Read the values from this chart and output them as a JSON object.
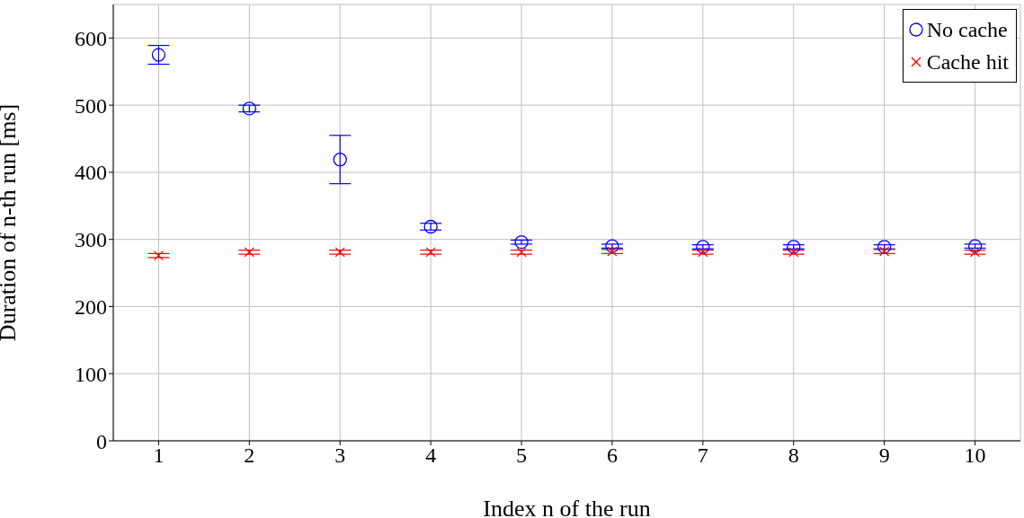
{
  "chart_data": {
    "type": "scatter",
    "xlabel": "Index n of the run",
    "ylabel": "Duration of n-th run [ms]",
    "x": [
      1,
      2,
      3,
      4,
      5,
      6,
      7,
      8,
      9,
      10
    ],
    "xlim": [
      0.5,
      10.5
    ],
    "xticks": [
      1,
      2,
      3,
      4,
      5,
      6,
      7,
      8,
      9,
      10
    ],
    "ylim": [
      0,
      650
    ],
    "yticks": [
      0,
      100,
      200,
      300,
      400,
      500,
      600
    ],
    "grid": true,
    "legend": "top right",
    "series": [
      {
        "name": "No cache",
        "color": "#0000ff",
        "marker": "circle",
        "values": [
          575,
          495,
          419,
          319,
          296,
          290,
          289,
          289,
          289,
          290
        ],
        "errors": [
          14,
          5,
          36,
          5,
          3,
          3,
          3,
          3,
          3,
          3
        ]
      },
      {
        "name": "Cache hit",
        "color": "#ff0000",
        "marker": "cross",
        "values": [
          276,
          281,
          281,
          281,
          281,
          282,
          281,
          281,
          282,
          281
        ],
        "errors": [
          3,
          3,
          3,
          3,
          3,
          3,
          3,
          3,
          3,
          3
        ]
      }
    ]
  }
}
